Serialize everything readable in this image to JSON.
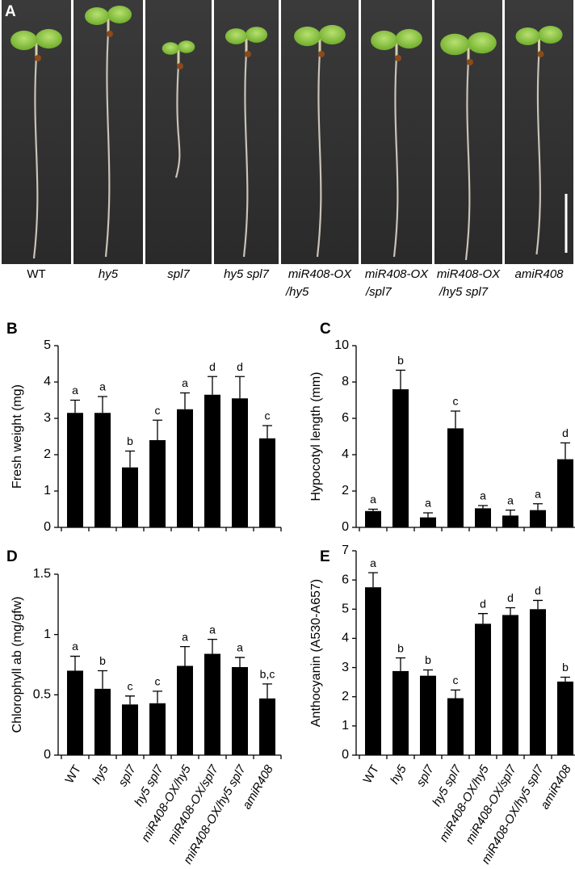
{
  "panel_a": {
    "panel": "A",
    "genotypes": [
      [
        "WT"
      ],
      [
        "hy5"
      ],
      [
        "spl7"
      ],
      [
        "hy5 spl7"
      ],
      [
        "miR408-OX",
        "/hy5"
      ],
      [
        "miR408-OX",
        "/spl7"
      ],
      [
        "miR408-OX",
        "/hy5 spl7"
      ],
      [
        "amiR408"
      ]
    ]
  },
  "chart_data": [
    {
      "type": "bar",
      "panel": "B",
      "y_label": "Fresh weight (mg)",
      "color": "#000000",
      "ylim": [
        0,
        5
      ],
      "yticks": [
        0,
        1,
        2,
        3,
        4,
        5
      ],
      "values": [
        3.15,
        3.15,
        1.65,
        2.4,
        3.25,
        3.65,
        3.55,
        2.45
      ],
      "errors": [
        0.35,
        0.45,
        0.45,
        0.55,
        0.45,
        0.5,
        0.6,
        0.35
      ],
      "letters": [
        "a",
        "a",
        "b",
        "c",
        "a",
        "d",
        "d",
        "c"
      ]
    },
    {
      "type": "bar",
      "panel": "C",
      "y_label": "Hypocotyl length (mm)",
      "color": "#000000",
      "ylim": [
        0,
        10
      ],
      "yticks": [
        0,
        2,
        4,
        6,
        8,
        10
      ],
      "values": [
        0.9,
        7.6,
        0.55,
        5.45,
        1.05,
        0.65,
        0.95,
        3.75
      ],
      "errors": [
        0.1,
        1.05,
        0.25,
        0.95,
        0.15,
        0.3,
        0.35,
        0.9
      ],
      "letters": [
        "a",
        "b",
        "a",
        "c",
        "a",
        "a",
        "a",
        "d"
      ]
    },
    {
      "type": "bar",
      "panel": "D",
      "y_label": "Chlorophyll ab (mg/gfw)",
      "color": "#000000",
      "ylim": [
        0,
        1.5
      ],
      "yticks": [
        0,
        0.5,
        1,
        1.5
      ],
      "categories": [
        "WT",
        "hy5",
        "spl7",
        "hy5 spl7",
        "miR408-OX/hy5",
        "miR408-OX/spl7",
        "miR408-OX/hy5 spl7",
        "amiR408"
      ],
      "values": [
        0.7,
        0.55,
        0.42,
        0.43,
        0.74,
        0.84,
        0.73,
        0.47
      ],
      "errors": [
        0.12,
        0.15,
        0.07,
        0.1,
        0.16,
        0.12,
        0.08,
        0.12
      ],
      "letters": [
        "a",
        "b",
        "c",
        "c",
        "a",
        "a",
        "a",
        "b,c"
      ]
    },
    {
      "type": "bar",
      "panel": "E",
      "y_label": "Anthocyanin (A530-A657)",
      "color": "#000000",
      "ylim": [
        0,
        7
      ],
      "yticks": [
        0,
        1,
        2,
        3,
        4,
        5,
        6,
        7
      ],
      "categories": [
        "WT",
        "hy5",
        "spl7",
        "hy5 spl7",
        "miR408-OX/hy5",
        "miR408-OX/spl7",
        "miR408-OX/hy5 spl7",
        "amiR408"
      ],
      "values": [
        5.75,
        2.88,
        2.72,
        1.95,
        4.5,
        4.8,
        5.0,
        2.52
      ],
      "errors": [
        0.5,
        0.45,
        0.2,
        0.28,
        0.35,
        0.25,
        0.3,
        0.15
      ],
      "letters": [
        "a",
        "b",
        "b",
        "c",
        "d",
        "d",
        "d",
        "b"
      ]
    }
  ]
}
